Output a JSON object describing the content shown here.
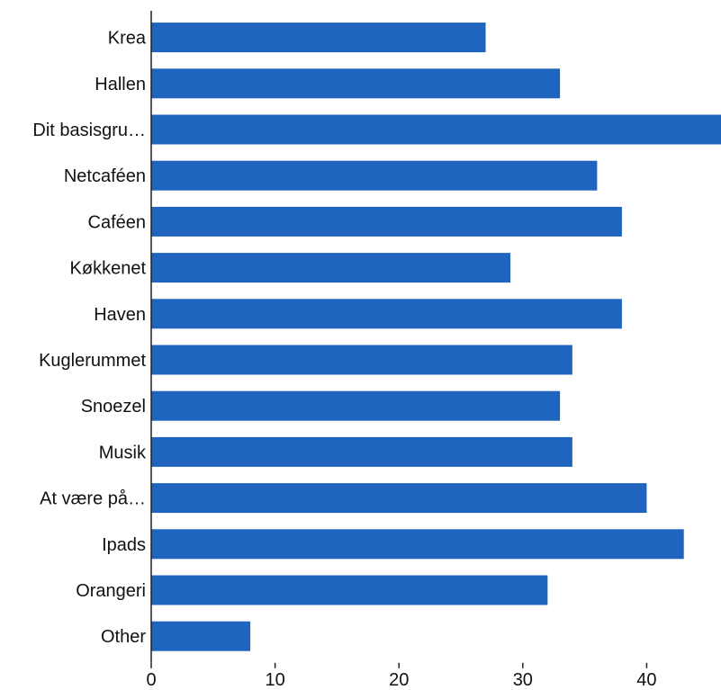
{
  "chart_data": {
    "type": "bar",
    "orientation": "horizontal",
    "categories": [
      "Krea",
      "Hallen",
      "Dit basisgru…",
      "Netcaféen",
      "Caféen",
      "Køkkenet",
      "Haven",
      "Kuglerummet",
      "Snoezel",
      "Musik",
      "At være på…",
      "Ipads",
      "Orangeri",
      "Other"
    ],
    "values": [
      27,
      33,
      46,
      36,
      38,
      29,
      38,
      34,
      33,
      34,
      40,
      43,
      32,
      8
    ],
    "xlim": [
      0,
      46
    ],
    "xticks": [
      0,
      10,
      20,
      30,
      40
    ],
    "bar_color": "#1f65c0",
    "grid": false,
    "title": "",
    "xlabel": "",
    "ylabel": ""
  }
}
